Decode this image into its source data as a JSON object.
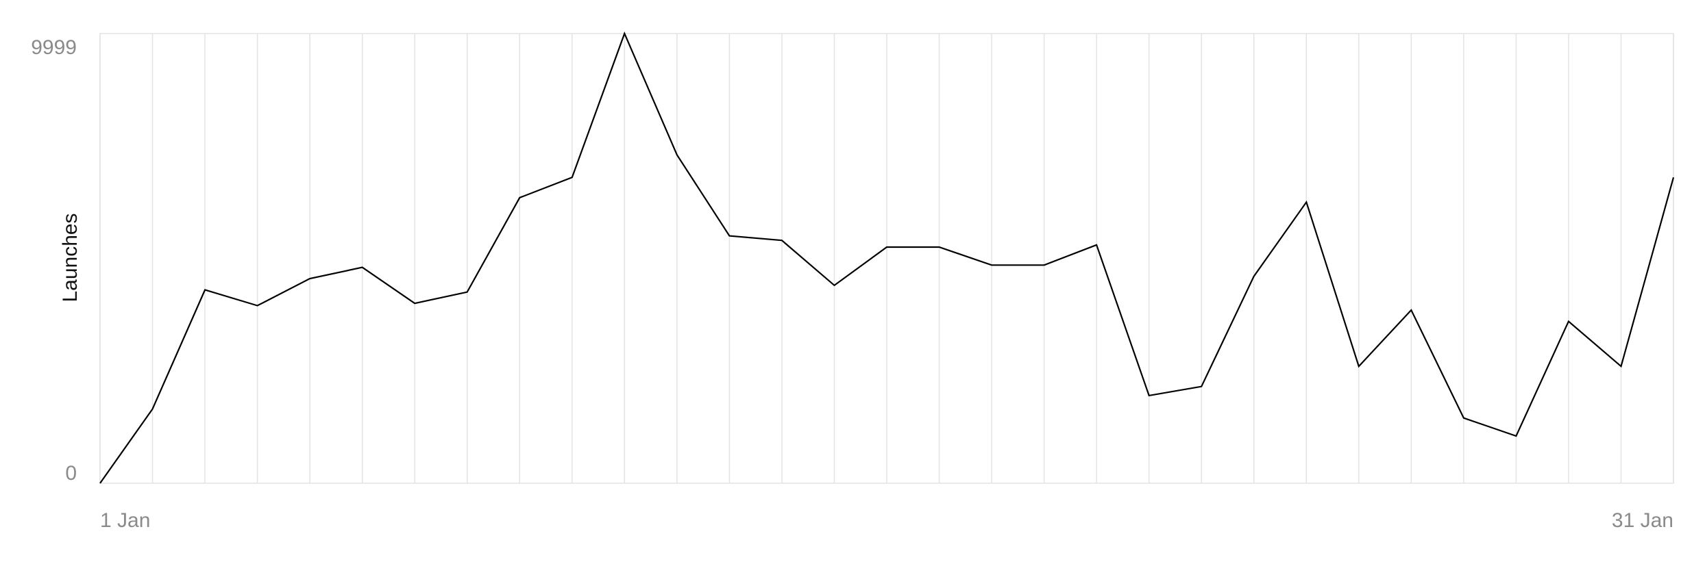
{
  "chart_data": {
    "type": "line",
    "title": "",
    "xlabel": "",
    "ylabel": "Launches",
    "x_tick_labels": [
      "1 Jan",
      "31 Jan"
    ],
    "y_tick_labels": [
      "9999",
      "0"
    ],
    "ylim": [
      0,
      9999
    ],
    "grid": "vertical",
    "legend": "none",
    "line_color": "#000000",
    "grid_color": "#e3e3e3",
    "tick_color": "#8a8a8a",
    "x": [
      "1 Jan",
      "2 Jan",
      "3 Jan",
      "4 Jan",
      "5 Jan",
      "6 Jan",
      "7 Jan",
      "8 Jan",
      "9 Jan",
      "10 Jan",
      "11 Jan",
      "12 Jan",
      "13 Jan",
      "14 Jan",
      "15 Jan",
      "16 Jan",
      "17 Jan",
      "18 Jan",
      "19 Jan",
      "20 Jan",
      "21 Jan",
      "22 Jan",
      "23 Jan",
      "24 Jan",
      "25 Jan",
      "26 Jan",
      "27 Jan",
      "28 Jan",
      "29 Jan",
      "30 Jan",
      "31 Jan"
    ],
    "series": [
      {
        "values": [
          0,
          1650,
          4300,
          3950,
          4550,
          4800,
          4000,
          4250,
          6350,
          6800,
          9999,
          7300,
          5500,
          5400,
          4400,
          5250,
          5250,
          4850,
          4850,
          5300,
          1950,
          2150,
          4600,
          6250,
          2600,
          3850,
          1450,
          1050,
          3600,
          2600,
          6800
        ]
      }
    ]
  }
}
